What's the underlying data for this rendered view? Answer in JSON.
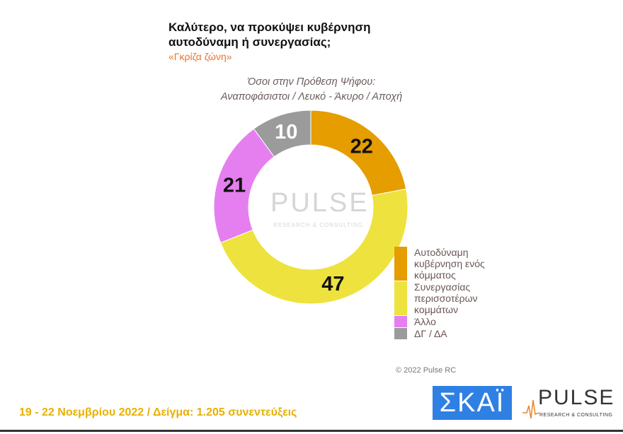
{
  "header": {
    "title_line1": "Καλύτερο, να προκύψει κυβέρνηση",
    "title_line2": "αυτοδύναμη ή συνεργασίας;",
    "subtitle": "«Γκρίζα ζώνη»",
    "note_line1": "Όσοι στην Πρόθεση Ψήφου:",
    "note_line2": "Αναποφάσιστοι / Λευκό - Άκυρο / Αποχή"
  },
  "chart_data": {
    "type": "pie",
    "donut": true,
    "start": "top, clockwise",
    "categories": [
      "Αυτοδύναμη κυβέρνηση ενός κόμματος",
      "Συνεργασίας περισσοτέρων κομμάτων",
      "Άλλο",
      "ΔΓ / ΔΑ"
    ],
    "values": [
      22,
      47,
      21,
      10
    ],
    "colors": [
      "#E59D00",
      "#EEE23E",
      "#E57FF0",
      "#9B9B9B"
    ],
    "legend_position": "right"
  },
  "legend": [
    "Αυτοδύναμη κυβέρνηση ενός κόμματος",
    "Συνεργασίας περισσοτέρων κομμάτων",
    "Άλλο",
    "ΔΓ / ΔΑ"
  ],
  "watermark": {
    "word": "PULSE",
    "sub": "RESEARCH & CONSULTING"
  },
  "copyright": "© 2022 Pulse RC",
  "footer": "19 - 22  Νοεμβρίου  2022  /  Δείγμα:  1.205 συνεντεύξεις",
  "logos": {
    "skai": "ΣΚΑΪ",
    "pulse": "PULSE",
    "pulse_sub": "RESEARCH & CONSULTING"
  }
}
